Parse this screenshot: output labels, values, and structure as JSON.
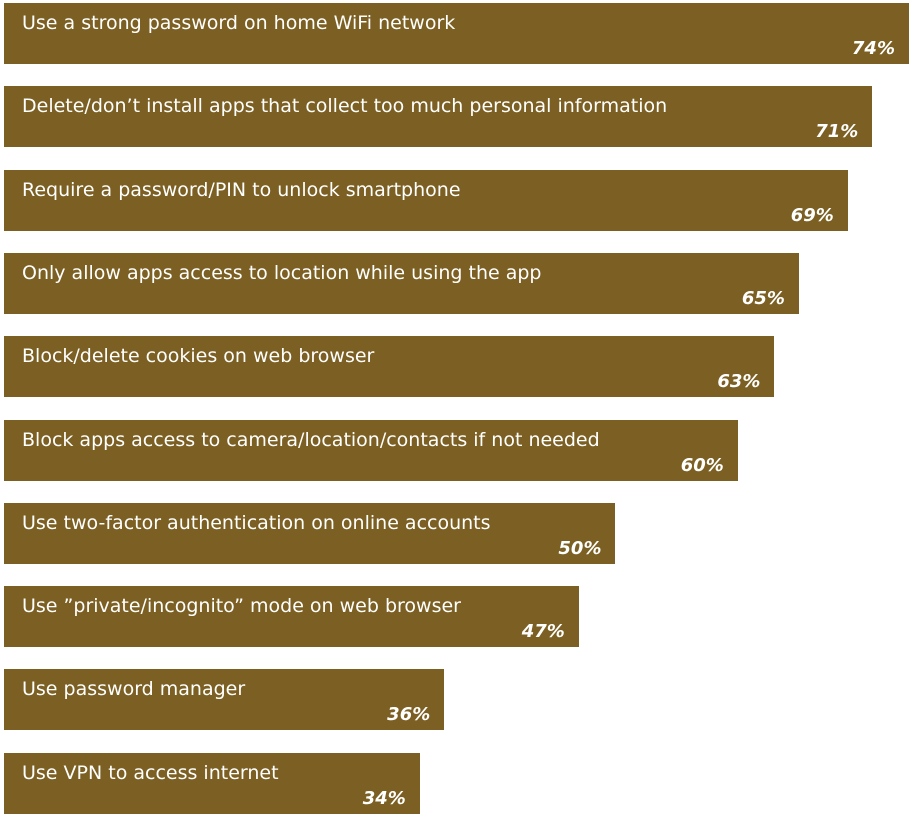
{
  "chart_data": {
    "type": "bar",
    "orientation": "horizontal",
    "categories": [
      "Use a strong password on home WiFi network",
      "Delete/don’t install apps that collect too much personal information",
      "Require a password/PIN to unlock smartphone",
      "Only allow apps access to location while using the app",
      "Block/delete cookies on web browser",
      "Block apps access to camera/location/contacts if not needed",
      "Use two-factor authentication on online accounts",
      "Use ”private/incognito” mode on web browser",
      "Use password manager",
      "Use VPN to access internet"
    ],
    "values": [
      74,
      71,
      69,
      65,
      63,
      60,
      50,
      47,
      36,
      34
    ],
    "value_labels": [
      "74%",
      "71%",
      "69%",
      "65%",
      "63%",
      "60%",
      "50%",
      "47%",
      "36%",
      "34%"
    ],
    "bar_color": "#7c5f22",
    "xlim": [
      0,
      74
    ],
    "title": "",
    "xlabel": "",
    "ylabel": "",
    "grid": false,
    "legend": "none"
  }
}
